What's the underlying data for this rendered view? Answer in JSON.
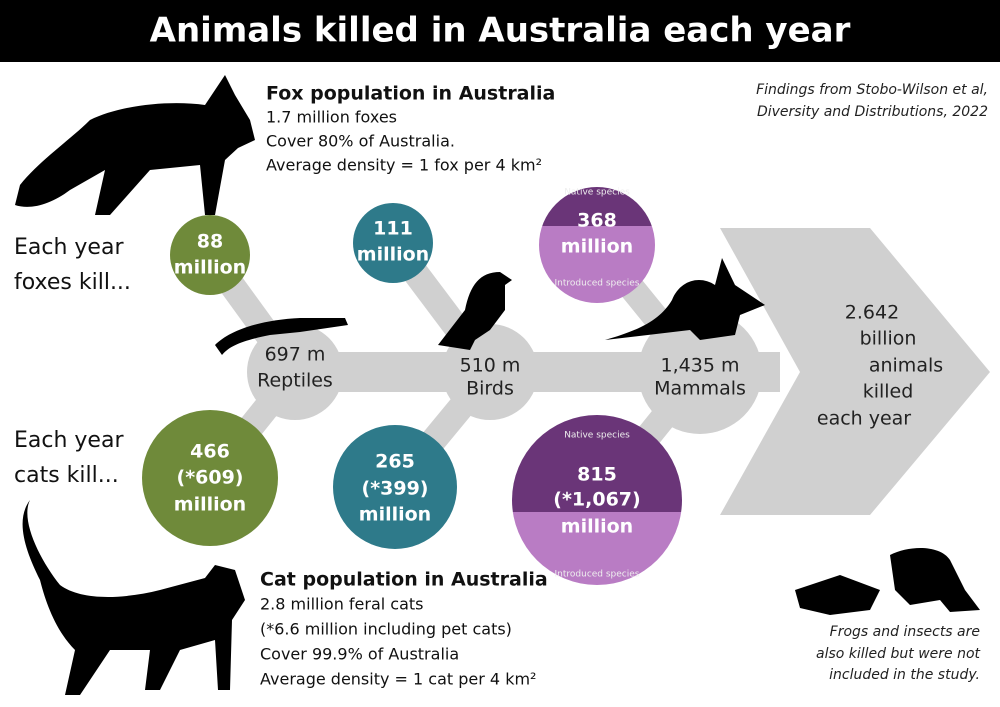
{
  "header": {
    "title": "Animals killed in Australia each year"
  },
  "source": [
    "Findings from Stobo-Wilson et al,",
    "Diversity and Distributions, 2022"
  ],
  "fox": {
    "heading": "Fox population in Australia",
    "lines": [
      "1.7 million foxes",
      "Cover 80% of Australia.",
      "Average density = 1 fox per 4 km²"
    ],
    "kill_label": [
      "Each year",
      "foxes kill..."
    ]
  },
  "cat": {
    "heading": "Cat population in Australia",
    "lines": [
      "2.8 million feral cats",
      "(*6.6 million including pet cats)",
      "Cover 99.9% of Australia",
      "Average density = 1 cat per 4 km²"
    ],
    "kill_label": [
      "Each year",
      "cats kill..."
    ]
  },
  "nodes": [
    {
      "value": "697 m",
      "label": "Reptiles"
    },
    {
      "value": "510 m",
      "label": "Birds"
    },
    {
      "value": "1,435 m",
      "label": "Mammals"
    }
  ],
  "fox_kills": [
    {
      "lines": [
        "88",
        "million"
      ]
    },
    {
      "lines": [
        "111",
        "million"
      ]
    },
    {
      "lines": [
        "368",
        "million"
      ],
      "top": "Native species",
      "bottom": "Introduced species"
    }
  ],
  "cat_kills": [
    {
      "lines": [
        "466",
        "(*609)",
        "million"
      ]
    },
    {
      "lines": [
        "265",
        "(*399)",
        "million"
      ]
    },
    {
      "lines": [
        "815",
        "(*1,067)",
        "million"
      ],
      "top": "Native species",
      "bottom": "Introduced species"
    }
  ],
  "total": [
    "2.642",
    "billion",
    "animals",
    "killed",
    "each year"
  ],
  "note": [
    "Frogs and insects are",
    "also killed but were not",
    "included in the study."
  ]
}
